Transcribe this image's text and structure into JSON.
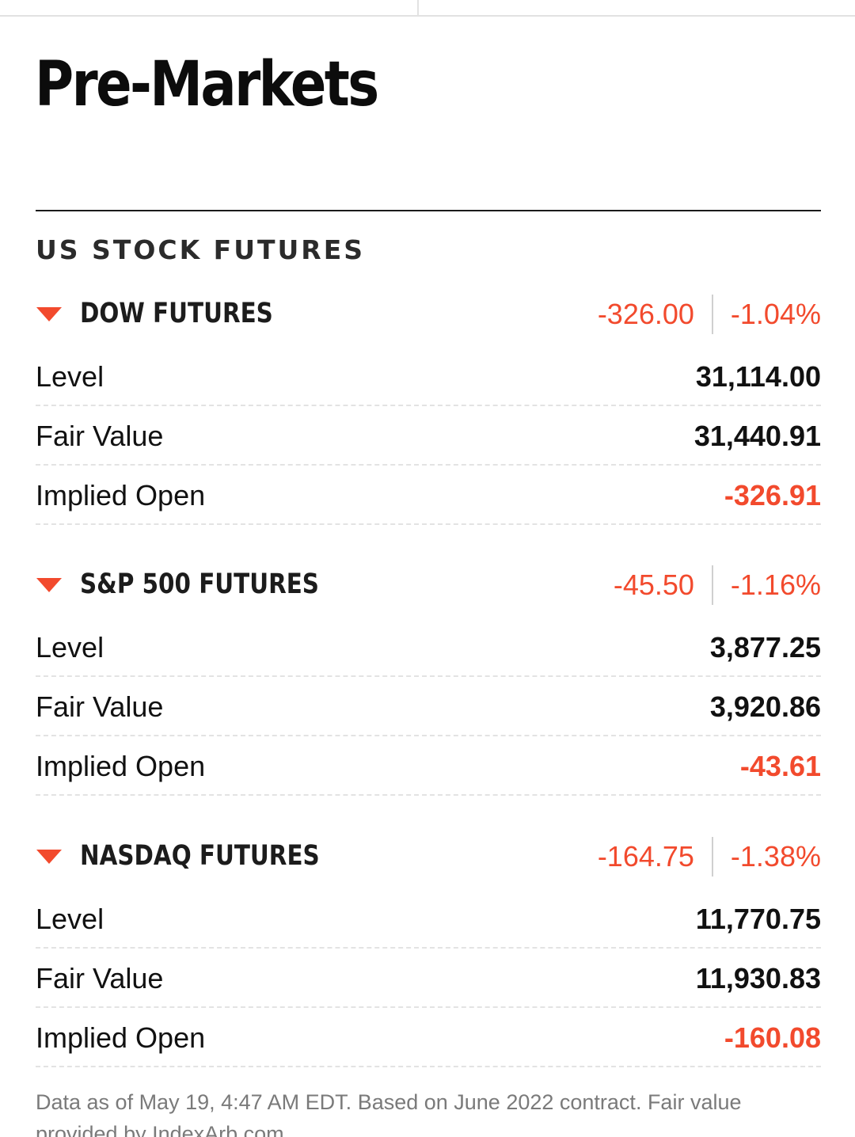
{
  "page": {
    "title": "Pre-Markets",
    "section_title": "US STOCK FUTURES"
  },
  "futures": [
    {
      "name": "DOW FUTURES",
      "change": "-326.00",
      "change_pct": "-1.04%",
      "direction_icon": "triangle-down-icon",
      "rows": [
        {
          "label": "Level",
          "value": "31,114.00"
        },
        {
          "label": "Fair Value",
          "value": "31,440.91"
        },
        {
          "label": "Implied Open",
          "value": "-326.91"
        }
      ]
    },
    {
      "name": "S&P 500 FUTURES",
      "change": "-45.50",
      "change_pct": "-1.16%",
      "direction_icon": "triangle-down-icon",
      "rows": [
        {
          "label": "Level",
          "value": "3,877.25"
        },
        {
          "label": "Fair Value",
          "value": "3,920.86"
        },
        {
          "label": "Implied Open",
          "value": "-43.61"
        }
      ]
    },
    {
      "name": "NASDAQ FUTURES",
      "change": "-164.75",
      "change_pct": "-1.38%",
      "direction_icon": "triangle-down-icon",
      "rows": [
        {
          "label": "Level",
          "value": "11,770.75"
        },
        {
          "label": "Fair Value",
          "value": "11,930.83"
        },
        {
          "label": "Implied Open",
          "value": "-160.08"
        }
      ]
    }
  ],
  "footnote": "Data as of May 19, 4:47 AM EDT. Based on June 2022 contract. Fair value provided by IndexArb.com",
  "colors": {
    "negative": "#f24a2d",
    "text": "#0c0c0c"
  }
}
